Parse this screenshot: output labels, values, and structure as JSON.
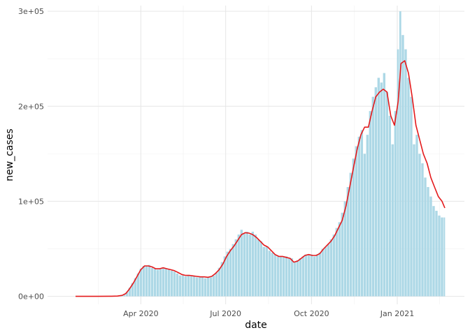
{
  "chart_data": {
    "type": "bar",
    "title": "",
    "xlabel": "date",
    "ylabel": "new_cases",
    "x_range": [
      "2020-01-22",
      "2021-02-21"
    ],
    "ylim": [
      0,
      300000
    ],
    "grid": true,
    "legend": "none",
    "x_ticks": [
      {
        "value": "2020-04-01",
        "label": "Apr 2020"
      },
      {
        "value": "2020-07-01",
        "label": "Jul 2020"
      },
      {
        "value": "2020-10-01",
        "label": "Oct 2020"
      },
      {
        "value": "2021-01-01",
        "label": "Jan 2021"
      }
    ],
    "y_ticks": [
      {
        "value": 0,
        "label": "0e+00"
      },
      {
        "value": 100000,
        "label": "1e+05"
      },
      {
        "value": 200000,
        "label": "2e+05"
      },
      {
        "value": 300000,
        "label": "3e+05"
      }
    ],
    "series": [
      {
        "kind": "bars",
        "color": "#add8e6",
        "points": [
          [
            "2020-01-22",
            0
          ],
          [
            "2020-02-01",
            0
          ],
          [
            "2020-02-15",
            0
          ],
          [
            "2020-03-01",
            100
          ],
          [
            "2020-03-07",
            300
          ],
          [
            "2020-03-12",
            700
          ],
          [
            "2020-03-14",
            1500
          ],
          [
            "2020-03-17",
            4500
          ],
          [
            "2020-03-20",
            9000
          ],
          [
            "2020-03-23",
            14000
          ],
          [
            "2020-03-26",
            19000
          ],
          [
            "2020-03-29",
            24000
          ],
          [
            "2020-04-01",
            29000
          ],
          [
            "2020-04-04",
            32000
          ],
          [
            "2020-04-07",
            32000
          ],
          [
            "2020-04-10",
            33000
          ],
          [
            "2020-04-13",
            30000
          ],
          [
            "2020-04-16",
            29000
          ],
          [
            "2020-04-19",
            28000
          ],
          [
            "2020-04-22",
            29000
          ],
          [
            "2020-04-25",
            30000
          ],
          [
            "2020-04-28",
            29000
          ],
          [
            "2020-05-01",
            28000
          ],
          [
            "2020-05-04",
            27000
          ],
          [
            "2020-05-07",
            26000
          ],
          [
            "2020-05-10",
            24000
          ],
          [
            "2020-05-13",
            22000
          ],
          [
            "2020-05-16",
            22000
          ],
          [
            "2020-05-19",
            21000
          ],
          [
            "2020-05-22",
            22000
          ],
          [
            "2020-05-25",
            21000
          ],
          [
            "2020-05-28",
            21000
          ],
          [
            "2020-05-31",
            20000
          ],
          [
            "2020-06-03",
            20000
          ],
          [
            "2020-06-06",
            21000
          ],
          [
            "2020-06-09",
            19000
          ],
          [
            "2020-06-12",
            20000
          ],
          [
            "2020-06-15",
            20000
          ],
          [
            "2020-06-18",
            22000
          ],
          [
            "2020-06-21",
            25000
          ],
          [
            "2020-06-24",
            30000
          ],
          [
            "2020-06-27",
            36000
          ],
          [
            "2020-06-30",
            42000
          ],
          [
            "2020-07-03",
            47000
          ],
          [
            "2020-07-06",
            50000
          ],
          [
            "2020-07-09",
            55000
          ],
          [
            "2020-07-12",
            60000
          ],
          [
            "2020-07-15",
            65000
          ],
          [
            "2020-07-18",
            70000
          ],
          [
            "2020-07-21",
            66000
          ],
          [
            "2020-07-24",
            68000
          ],
          [
            "2020-07-27",
            65000
          ],
          [
            "2020-07-30",
            68000
          ],
          [
            "2020-08-02",
            65000
          ],
          [
            "2020-08-05",
            60000
          ],
          [
            "2020-08-08",
            58000
          ],
          [
            "2020-08-11",
            52000
          ],
          [
            "2020-08-14",
            52000
          ],
          [
            "2020-08-17",
            48000
          ],
          [
            "2020-08-20",
            46000
          ],
          [
            "2020-08-23",
            44000
          ],
          [
            "2020-08-26",
            42000
          ],
          [
            "2020-08-29",
            42000
          ],
          [
            "2020-09-01",
            42000
          ],
          [
            "2020-09-04",
            42000
          ],
          [
            "2020-09-07",
            40000
          ],
          [
            "2020-09-10",
            40000
          ],
          [
            "2020-09-13",
            36000
          ],
          [
            "2020-09-16",
            38000
          ],
          [
            "2020-09-19",
            40000
          ],
          [
            "2020-09-22",
            42000
          ],
          [
            "2020-09-25",
            44000
          ],
          [
            "2020-09-28",
            44000
          ],
          [
            "2020-10-01",
            44000
          ],
          [
            "2020-10-04",
            42000
          ],
          [
            "2020-10-07",
            44000
          ],
          [
            "2020-10-10",
            46000
          ],
          [
            "2020-10-13",
            50000
          ],
          [
            "2020-10-16",
            52000
          ],
          [
            "2020-10-19",
            55000
          ],
          [
            "2020-10-22",
            60000
          ],
          [
            "2020-10-25",
            65000
          ],
          [
            "2020-10-28",
            72000
          ],
          [
            "2020-10-31",
            78000
          ],
          [
            "2020-11-03",
            88000
          ],
          [
            "2020-11-06",
            100000
          ],
          [
            "2020-11-09",
            115000
          ],
          [
            "2020-11-12",
            130000
          ],
          [
            "2020-11-15",
            145000
          ],
          [
            "2020-11-18",
            158000
          ],
          [
            "2020-11-21",
            168000
          ],
          [
            "2020-11-24",
            175000
          ],
          [
            "2020-11-27",
            150000
          ],
          [
            "2020-11-30",
            170000
          ],
          [
            "2020-12-03",
            195000
          ],
          [
            "2020-12-06",
            210000
          ],
          [
            "2020-12-09",
            220000
          ],
          [
            "2020-12-12",
            230000
          ],
          [
            "2020-12-15",
            225000
          ],
          [
            "2020-12-18",
            235000
          ],
          [
            "2020-12-21",
            215000
          ],
          [
            "2020-12-24",
            190000
          ],
          [
            "2020-12-27",
            160000
          ],
          [
            "2020-12-30",
            195000
          ],
          [
            "2021-01-02",
            260000
          ],
          [
            "2021-01-04",
            300000
          ],
          [
            "2021-01-07",
            275000
          ],
          [
            "2021-01-10",
            260000
          ],
          [
            "2021-01-13",
            230000
          ],
          [
            "2021-01-16",
            210000
          ],
          [
            "2021-01-19",
            160000
          ],
          [
            "2021-01-22",
            170000
          ],
          [
            "2021-01-25",
            150000
          ],
          [
            "2021-01-28",
            140000
          ],
          [
            "2021-01-31",
            125000
          ],
          [
            "2021-02-03",
            115000
          ],
          [
            "2021-02-06",
            105000
          ],
          [
            "2021-02-09",
            95000
          ],
          [
            "2021-02-12",
            90000
          ],
          [
            "2021-02-15",
            85000
          ],
          [
            "2021-02-18",
            83000
          ],
          [
            "2021-02-21",
            83000
          ]
        ]
      },
      {
        "kind": "line",
        "color": "#e41a1c",
        "points": [
          [
            "2020-01-22",
            0
          ],
          [
            "2020-02-01",
            0
          ],
          [
            "2020-02-15",
            0
          ],
          [
            "2020-03-01",
            100
          ],
          [
            "2020-03-07",
            300
          ],
          [
            "2020-03-12",
            1000
          ],
          [
            "2020-03-16",
            3000
          ],
          [
            "2020-03-20",
            8000
          ],
          [
            "2020-03-24",
            14000
          ],
          [
            "2020-03-28",
            21000
          ],
          [
            "2020-04-01",
            28000
          ],
          [
            "2020-04-05",
            32000
          ],
          [
            "2020-04-09",
            32000
          ],
          [
            "2020-04-13",
            31000
          ],
          [
            "2020-04-17",
            29000
          ],
          [
            "2020-04-21",
            29000
          ],
          [
            "2020-04-25",
            30000
          ],
          [
            "2020-04-29",
            29000
          ],
          [
            "2020-05-03",
            28000
          ],
          [
            "2020-05-07",
            27000
          ],
          [
            "2020-05-11",
            25000
          ],
          [
            "2020-05-15",
            23000
          ],
          [
            "2020-05-19",
            22000
          ],
          [
            "2020-05-23",
            22000
          ],
          [
            "2020-05-27",
            21500
          ],
          [
            "2020-05-31",
            21000
          ],
          [
            "2020-06-04",
            20500
          ],
          [
            "2020-06-08",
            20500
          ],
          [
            "2020-06-12",
            20000
          ],
          [
            "2020-06-16",
            21000
          ],
          [
            "2020-06-20",
            24000
          ],
          [
            "2020-06-24",
            28000
          ],
          [
            "2020-06-28",
            34000
          ],
          [
            "2020-07-02",
            42000
          ],
          [
            "2020-07-06",
            48000
          ],
          [
            "2020-07-10",
            53000
          ],
          [
            "2020-07-14",
            59000
          ],
          [
            "2020-07-18",
            65000
          ],
          [
            "2020-07-22",
            67000
          ],
          [
            "2020-07-26",
            66500
          ],
          [
            "2020-07-30",
            65000
          ],
          [
            "2020-08-03",
            62000
          ],
          [
            "2020-08-07",
            58000
          ],
          [
            "2020-08-11",
            54000
          ],
          [
            "2020-08-15",
            52000
          ],
          [
            "2020-08-19",
            48000
          ],
          [
            "2020-08-23",
            44000
          ],
          [
            "2020-08-27",
            42000
          ],
          [
            "2020-08-31",
            42000
          ],
          [
            "2020-09-04",
            41000
          ],
          [
            "2020-09-08",
            40000
          ],
          [
            "2020-09-12",
            36000
          ],
          [
            "2020-09-16",
            37000
          ],
          [
            "2020-09-20",
            40000
          ],
          [
            "2020-09-24",
            43000
          ],
          [
            "2020-09-28",
            44000
          ],
          [
            "2020-10-02",
            43000
          ],
          [
            "2020-10-06",
            43000
          ],
          [
            "2020-10-10",
            45000
          ],
          [
            "2020-10-14",
            50000
          ],
          [
            "2020-10-18",
            54000
          ],
          [
            "2020-10-22",
            58000
          ],
          [
            "2020-10-26",
            64000
          ],
          [
            "2020-10-30",
            72000
          ],
          [
            "2020-11-03",
            80000
          ],
          [
            "2020-11-07",
            95000
          ],
          [
            "2020-11-11",
            115000
          ],
          [
            "2020-11-15",
            135000
          ],
          [
            "2020-11-19",
            155000
          ],
          [
            "2020-11-23",
            170000
          ],
          [
            "2020-11-27",
            178000
          ],
          [
            "2020-12-01",
            178000
          ],
          [
            "2020-12-05",
            195000
          ],
          [
            "2020-12-09",
            210000
          ],
          [
            "2020-12-13",
            215000
          ],
          [
            "2020-12-17",
            218000
          ],
          [
            "2020-12-21",
            215000
          ],
          [
            "2020-12-25",
            190000
          ],
          [
            "2020-12-29",
            180000
          ],
          [
            "2021-01-02",
            205000
          ],
          [
            "2021-01-05",
            245000
          ],
          [
            "2021-01-09",
            248000
          ],
          [
            "2021-01-13",
            235000
          ],
          [
            "2021-01-17",
            210000
          ],
          [
            "2021-01-21",
            180000
          ],
          [
            "2021-01-25",
            165000
          ],
          [
            "2021-01-29",
            150000
          ],
          [
            "2021-02-02",
            140000
          ],
          [
            "2021-02-06",
            125000
          ],
          [
            "2021-02-10",
            115000
          ],
          [
            "2021-02-14",
            105000
          ],
          [
            "2021-02-18",
            100000
          ],
          [
            "2021-02-21",
            93000
          ]
        ]
      }
    ]
  }
}
